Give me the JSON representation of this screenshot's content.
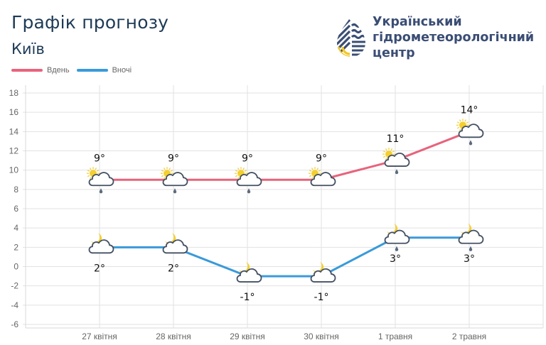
{
  "header": {
    "title": "Графік прогнозу",
    "city": "Київ"
  },
  "brand": {
    "line1": "Український",
    "line2": "гідрометеорологічний",
    "line3": "центр",
    "colors": {
      "navy": "#3a4d74",
      "yellow": "#f2c623"
    }
  },
  "legend": [
    {
      "label": "Вдень",
      "color": "#e8637c"
    },
    {
      "label": "Вночі",
      "color": "#3a9ad9"
    }
  ],
  "chart_data": {
    "type": "line",
    "title": "Графік прогнозу — Київ",
    "xlabel": "",
    "ylabel": "",
    "categories": [
      "27 квітня",
      "28 квітня",
      "29 квітня",
      "30 квітня",
      "1 травня",
      "2 травня"
    ],
    "series": [
      {
        "name": "Вдень",
        "color": "#e8637c",
        "values": [
          9,
          9,
          9,
          9,
          11,
          14
        ],
        "labels": [
          "9°",
          "9°",
          "9°",
          "9°",
          "11°",
          "14°"
        ],
        "icons": [
          "sun-cloud-rain",
          "sun-cloud-rain",
          "sun-cloud-rain",
          "sun-cloud",
          "sun-cloud-rain",
          "sun-cloud-rain"
        ]
      },
      {
        "name": "Вночі",
        "color": "#3a9ad9",
        "values": [
          2,
          2,
          -1,
          -1,
          3,
          3
        ],
        "labels": [
          "2°",
          "2°",
          "-1°",
          "-1°",
          "3°",
          "3°"
        ],
        "icons": [
          "moon-cloud",
          "moon-cloud",
          "moon-cloud",
          "moon-cloud",
          "moon-cloud-rain",
          "moon-cloud-rain"
        ]
      }
    ],
    "yticks": [
      18,
      16,
      14,
      12,
      10,
      8,
      6,
      4,
      2,
      0,
      -2,
      -4,
      -6
    ],
    "ylim": [
      -6,
      18
    ],
    "grid": true,
    "legend_position": "top-left"
  }
}
